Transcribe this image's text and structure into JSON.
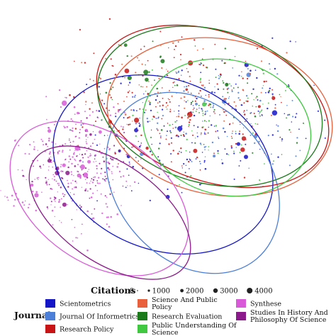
{
  "chart_data": {
    "type": "scatter",
    "title": "",
    "xlabel": "",
    "ylabel": "",
    "grid": false,
    "legend_placement": "bottom",
    "size_legend": {
      "title": "Citations",
      "values": [
        0,
        1000,
        2000,
        3000,
        4000
      ],
      "labels": [
        "0",
        "1000",
        "2000",
        "3000",
        "4000"
      ]
    },
    "color_legend": {
      "title": "Journal"
    },
    "series": [
      {
        "name": "Scientometrics",
        "color": "#1515c8",
        "region": {
          "cx": 0.58,
          "cy": 0.46,
          "rx": 0.36,
          "ry": 0.19,
          "angle": -15
        },
        "points": 220
      },
      {
        "name": "Journal Of Informetrics",
        "color": "#4b7fd8",
        "region": {
          "cx": 0.66,
          "cy": 0.42,
          "rx": 0.26,
          "ry": 0.15,
          "angle": 0
        },
        "points": 110
      },
      {
        "name": "Research Policy",
        "color": "#c81414",
        "region": {
          "cx": 0.54,
          "cy": 0.38,
          "rx": 0.32,
          "ry": 0.2,
          "angle": 10
        },
        "points": 200
      },
      {
        "name": "Science And Public Policy",
        "color": "#e8603c",
        "region": {
          "cx": 0.55,
          "cy": 0.32,
          "rx": 0.3,
          "ry": 0.14,
          "angle": 8
        },
        "points": 80
      },
      {
        "name": "Research Evaluation",
        "color": "#1a7a1a",
        "region": {
          "cx": 0.6,
          "cy": 0.36,
          "rx": 0.3,
          "ry": 0.16,
          "angle": 5
        },
        "points": 90
      },
      {
        "name": "Public Understanding Of Science",
        "color": "#40c840",
        "region": {
          "cx": 0.6,
          "cy": 0.45,
          "rx": 0.3,
          "ry": 0.18,
          "angle": -3
        },
        "points": 60
      },
      {
        "name": "Synthese",
        "color": "#d85ad8",
        "region": {
          "cx": 0.22,
          "cy": 0.6,
          "rx": 0.18,
          "ry": 0.2,
          "angle": 30
        },
        "points": 300
      },
      {
        "name": "Studies In History And Philosophy Of Science",
        "color": "#8c1a8c",
        "region": {
          "cx": 0.24,
          "cy": 0.62,
          "rx": 0.14,
          "ry": 0.15,
          "angle": 30
        },
        "points": 110
      }
    ]
  }
}
